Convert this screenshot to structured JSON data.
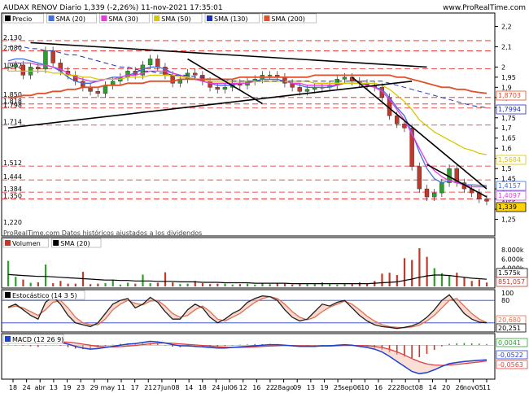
{
  "header": {
    "title": "AUDAX RENOV Diario 1,339 (-2,26%) 11-nov-2021 17:35:01",
    "site": "www.ProRealTime.com",
    "watermark": "ProRealTime.com  Datos históricos ajustados a los dividendos"
  },
  "colors": {
    "sma20": "#3f6fe0",
    "sma30": "#e83ce0",
    "sma50": "#d8c700",
    "sma130": "#2030b0",
    "sma200": "#e0502a",
    "up": "#2ca02c",
    "down": "#c0392b",
    "hline": "#e02020",
    "stoch_k": "#202020",
    "stoch_d": "#e07050",
    "macd": "#2040d0",
    "signal": "#e04040"
  },
  "chart_data": [
    {
      "type": "line",
      "panel": "price",
      "legend": [
        "Precio",
        "SMA (20)",
        "SMA (30)",
        "SMA (50)",
        "SMA (130)",
        "SMA (200)"
      ],
      "ylim": [
        1.2,
        2.25
      ],
      "right_ticks": [
        "2,2",
        "2,1",
        "2",
        "1,95",
        "1,9",
        "1,85",
        "1,8",
        "1,75",
        "1,7",
        "1,65",
        "1,6",
        "1,55",
        "1,5",
        "1,45",
        "1,4",
        "1,35",
        "1,3",
        "1,25"
      ],
      "left_labels": [
        "2,130",
        "2,080",
        "1,992",
        "1,850",
        "1,818",
        "1,798",
        "1,714",
        "1,512",
        "1,444",
        "1,384",
        "1,350",
        "1,220"
      ],
      "hlines": [
        2.13,
        2.08,
        1.992,
        1.85,
        1.818,
        1.798,
        1.714,
        1.512,
        1.444,
        1.384,
        1.35
      ],
      "last_values": [
        {
          "label": "1,8703",
          "series": "SMA (200)"
        },
        {
          "label": "1,7994",
          "series": "SMA (130)"
        },
        {
          "label": "1,5684",
          "series": "SMA (50)"
        },
        {
          "label": "1,4157",
          "series": "SMA (20)"
        },
        {
          "label": "1,4097",
          "series": "SMA (30)"
        },
        {
          "label": "1,339",
          "series": "Precio"
        }
      ],
      "series": [
        {
          "name": "Precio",
          "values": [
            2.0,
            2.01,
            1.96,
            2.0,
            1.99,
            2.08,
            2.02,
            1.98,
            1.96,
            1.93,
            1.9,
            1.88,
            1.87,
            1.91,
            1.93,
            1.95,
            1.98,
            1.96,
            2.01,
            2.04,
            2.0,
            1.96,
            1.92,
            1.94,
            1.97,
            1.96,
            1.93,
            1.9,
            1.89,
            1.9,
            1.92,
            1.91,
            1.93,
            1.94,
            1.96,
            1.96,
            1.95,
            1.92,
            1.9,
            1.88,
            1.89,
            1.9,
            1.9,
            1.91,
            1.94,
            1.95,
            1.93,
            1.92,
            1.91,
            1.9,
            1.85,
            1.76,
            1.72,
            1.7,
            1.51,
            1.4,
            1.36,
            1.38,
            1.43,
            1.5,
            1.43,
            1.4,
            1.38,
            1.35,
            1.339
          ]
        },
        {
          "name": "SMA (20)",
          "values": [
            2.03,
            2.04,
            2.04,
            2.03,
            2.02,
            2.01,
            2.0,
            1.98,
            1.95,
            1.93,
            1.92,
            1.92,
            1.93,
            1.94,
            1.95,
            1.95,
            1.96,
            1.97,
            1.99,
            2.0,
            2.0,
            1.99,
            1.97,
            1.96,
            1.95,
            1.94,
            1.93,
            1.92,
            1.91,
            1.91,
            1.91,
            1.92,
            1.92,
            1.93,
            1.94,
            1.94,
            1.94,
            1.93,
            1.92,
            1.91,
            1.9,
            1.9,
            1.9,
            1.9,
            1.91,
            1.92,
            1.92,
            1.92,
            1.91,
            1.9,
            1.89,
            1.85,
            1.8,
            1.76,
            1.68,
            1.58,
            1.5,
            1.45,
            1.43,
            1.44,
            1.43,
            1.42,
            1.42,
            1.418,
            1.4157
          ]
        },
        {
          "name": "SMA (30)",
          "values": [
            2.02,
            2.02,
            2.02,
            2.02,
            2.01,
            2.01,
            2.0,
            1.99,
            1.97,
            1.95,
            1.94,
            1.93,
            1.93,
            1.94,
            1.94,
            1.95,
            1.96,
            1.96,
            1.97,
            1.98,
            1.98,
            1.98,
            1.97,
            1.96,
            1.95,
            1.94,
            1.93,
            1.92,
            1.92,
            1.92,
            1.92,
            1.92,
            1.92,
            1.93,
            1.93,
            1.93,
            1.93,
            1.93,
            1.92,
            1.92,
            1.91,
            1.91,
            1.91,
            1.91,
            1.91,
            1.92,
            1.92,
            1.92,
            1.91,
            1.9,
            1.88,
            1.84,
            1.79,
            1.74,
            1.67,
            1.6,
            1.53,
            1.49,
            1.46,
            1.44,
            1.43,
            1.42,
            1.41,
            1.41,
            1.4097
          ]
        },
        {
          "name": "SMA (50)",
          "values": [
            1.98,
            1.98,
            1.98,
            1.98,
            1.98,
            1.98,
            1.97,
            1.97,
            1.96,
            1.96,
            1.95,
            1.95,
            1.94,
            1.94,
            1.94,
            1.94,
            1.95,
            1.95,
            1.95,
            1.96,
            1.96,
            1.96,
            1.96,
            1.95,
            1.95,
            1.94,
            1.94,
            1.93,
            1.93,
            1.93,
            1.93,
            1.93,
            1.93,
            1.93,
            1.93,
            1.93,
            1.93,
            1.93,
            1.93,
            1.93,
            1.93,
            1.92,
            1.92,
            1.92,
            1.92,
            1.92,
            1.92,
            1.92,
            1.92,
            1.92,
            1.91,
            1.89,
            1.86,
            1.83,
            1.79,
            1.74,
            1.71,
            1.68,
            1.66,
            1.64,
            1.62,
            1.6,
            1.59,
            1.575,
            1.5684
          ]
        },
        {
          "name": "SMA (130)",
          "values": [
            2.1,
            2.1,
            2.1,
            2.09,
            2.09,
            2.08,
            2.08,
            2.07,
            2.06,
            2.06,
            2.05,
            2.04,
            2.03,
            2.02,
            2.01,
            2.0,
            2.0,
            1.99,
            1.98,
            1.98,
            1.97,
            1.97,
            1.96,
            1.96,
            1.96,
            1.95,
            1.95,
            1.94,
            1.94,
            1.94,
            1.93,
            1.93,
            1.93,
            1.93,
            1.93,
            1.93,
            1.93,
            1.93,
            1.93,
            1.93,
            1.93,
            1.93,
            1.93,
            1.93,
            1.93,
            1.93,
            1.93,
            1.93,
            1.93,
            1.93,
            1.93,
            1.92,
            1.91,
            1.9,
            1.89,
            1.88,
            1.87,
            1.86,
            1.85,
            1.84,
            1.83,
            1.82,
            1.81,
            1.805,
            1.7994
          ]
        },
        {
          "name": "SMA (200)",
          "values": [
            1.85,
            1.85,
            1.86,
            1.86,
            1.87,
            1.87,
            1.88,
            1.88,
            1.89,
            1.89,
            1.9,
            1.9,
            1.9,
            1.91,
            1.91,
            1.91,
            1.92,
            1.92,
            1.92,
            1.93,
            1.93,
            1.93,
            1.93,
            1.94,
            1.94,
            1.94,
            1.94,
            1.94,
            1.94,
            1.94,
            1.94,
            1.95,
            1.95,
            1.95,
            1.95,
            1.95,
            1.95,
            1.95,
            1.95,
            1.95,
            1.95,
            1.96,
            1.96,
            1.96,
            1.96,
            1.96,
            1.96,
            1.96,
            1.96,
            1.96,
            1.96,
            1.96,
            1.95,
            1.95,
            1.94,
            1.93,
            1.92,
            1.91,
            1.9,
            1.9,
            1.89,
            1.89,
            1.88,
            1.875,
            1.8703
          ]
        }
      ]
    },
    {
      "type": "bar",
      "panel": "volume",
      "legend": [
        "Volumen",
        "SMA (20)"
      ],
      "right_ticks": [
        "8.000k",
        "6.000k",
        "4.000k",
        "2.000k"
      ],
      "last_values": [
        {
          "label": "1.575k",
          "series": "SMA (20)"
        },
        {
          "label": "851,057",
          "series": "Volumen"
        }
      ],
      "series": [
        {
          "name": "Volumen",
          "values": [
            5600,
            2100,
            1500,
            800,
            900,
            4800,
            700,
            1200,
            600,
            600,
            3200,
            500,
            600,
            700,
            1500,
            400,
            800,
            600,
            2600,
            700,
            800,
            3100,
            900,
            500,
            600,
            1200,
            700,
            500,
            600,
            600,
            400,
            500,
            600,
            400,
            700,
            500,
            800,
            600,
            400,
            700,
            500,
            600,
            900,
            500,
            400,
            600,
            700,
            900,
            600,
            1200,
            2800,
            3000,
            2500,
            6200,
            5800,
            8400,
            6500,
            4000,
            2900,
            2500,
            3000,
            2000,
            1200,
            1500,
            851
          ]
        },
        {
          "name": "SMA (20)",
          "values": [
            2600,
            2500,
            2400,
            2300,
            2200,
            2200,
            2100,
            2000,
            1900,
            1800,
            1700,
            1600,
            1500,
            1400,
            1400,
            1300,
            1300,
            1200,
            1200,
            1200,
            1100,
            1100,
            1100,
            1000,
            1000,
            1000,
            900,
            900,
            900,
            800,
            800,
            800,
            800,
            700,
            700,
            700,
            700,
            700,
            600,
            600,
            600,
            600,
            600,
            600,
            600,
            600,
            600,
            600,
            600,
            700,
            800,
            900,
            1000,
            1300,
            1600,
            2000,
            2300,
            2500,
            2500,
            2400,
            2200,
            2000,
            1800,
            1700,
            1575
          ]
        }
      ]
    },
    {
      "type": "line",
      "panel": "stochastic",
      "legend": [
        "Estocástico (14 3 5)"
      ],
      "ylim": [
        0,
        100
      ],
      "right_ticks": [
        "100",
        "80",
        "20"
      ],
      "last_values": [
        {
          "label": "20,680",
          "series": "%D"
        },
        {
          "label": "20,251",
          "series": "%K"
        }
      ],
      "series": [
        {
          "name": "%K",
          "values": [
            62,
            70,
            55,
            40,
            30,
            75,
            90,
            70,
            40,
            20,
            15,
            10,
            20,
            45,
            70,
            80,
            85,
            60,
            70,
            88,
            75,
            50,
            30,
            30,
            55,
            70,
            60,
            35,
            20,
            30,
            45,
            55,
            75,
            85,
            92,
            90,
            80,
            55,
            35,
            25,
            30,
            50,
            70,
            65,
            75,
            80,
            60,
            40,
            25,
            15,
            10,
            8,
            5,
            8,
            12,
            20,
            35,
            55,
            80,
            95,
            70,
            45,
            30,
            22,
            20.251
          ]
        },
        {
          "name": "%D",
          "values": [
            60,
            65,
            60,
            50,
            40,
            55,
            75,
            80,
            60,
            35,
            20,
            15,
            15,
            30,
            55,
            70,
            80,
            72,
            68,
            78,
            80,
            65,
            45,
            35,
            40,
            55,
            65,
            50,
            30,
            25,
            35,
            45,
            60,
            75,
            85,
            90,
            85,
            70,
            50,
            35,
            28,
            35,
            50,
            62,
            70,
            78,
            70,
            55,
            38,
            25,
            15,
            10,
            8,
            7,
            9,
            14,
            25,
            40,
            60,
            80,
            85,
            65,
            45,
            30,
            20.68
          ]
        }
      ]
    },
    {
      "type": "line",
      "panel": "macd",
      "legend": [
        "MACD (12 26 9)"
      ],
      "right_ticks": [
        "0,0041",
        "-0,0522",
        "-0,0563"
      ],
      "last_values": [
        {
          "label": "0,0041",
          "series": "Histograma"
        },
        {
          "label": "-0,0522",
          "series": "MACD"
        },
        {
          "label": "-0,0563",
          "series": "Señal"
        }
      ],
      "series": [
        {
          "name": "MACD",
          "values": [
            0.02,
            0.018,
            0.015,
            0.012,
            0.008,
            0.012,
            0.014,
            0.01,
            0.004,
            -0.004,
            -0.01,
            -0.014,
            -0.012,
            -0.008,
            -0.004,
            0.0,
            0.004,
            0.006,
            0.01,
            0.014,
            0.012,
            0.008,
            0.002,
            -0.002,
            -0.002,
            -0.004,
            -0.006,
            -0.008,
            -0.01,
            -0.01,
            -0.008,
            -0.006,
            -0.004,
            -0.002,
            0.0,
            0.002,
            0.002,
            0.0,
            -0.002,
            -0.004,
            -0.004,
            -0.004,
            -0.002,
            -0.002,
            0.0,
            0.002,
            0.0,
            -0.004,
            -0.008,
            -0.014,
            -0.024,
            -0.04,
            -0.058,
            -0.076,
            -0.094,
            -0.102,
            -0.098,
            -0.088,
            -0.076,
            -0.066,
            -0.062,
            -0.058,
            -0.056,
            -0.054,
            -0.0522
          ]
        },
        {
          "name": "Señal",
          "values": [
            0.018,
            0.018,
            0.017,
            0.016,
            0.014,
            0.013,
            0.013,
            0.012,
            0.011,
            0.008,
            0.004,
            0.0,
            -0.004,
            -0.006,
            -0.006,
            -0.005,
            -0.003,
            -0.001,
            0.002,
            0.005,
            0.007,
            0.008,
            0.007,
            0.005,
            0.003,
            0.001,
            -0.001,
            -0.003,
            -0.005,
            -0.007,
            -0.008,
            -0.008,
            -0.007,
            -0.006,
            -0.004,
            -0.003,
            -0.002,
            -0.001,
            -0.001,
            -0.002,
            -0.002,
            -0.003,
            -0.003,
            -0.003,
            -0.002,
            -0.001,
            -0.001,
            -0.001,
            -0.002,
            -0.004,
            -0.008,
            -0.015,
            -0.024,
            -0.035,
            -0.048,
            -0.059,
            -0.067,
            -0.071,
            -0.072,
            -0.071,
            -0.069,
            -0.066,
            -0.063,
            -0.06,
            -0.0563
          ]
        }
      ]
    }
  ],
  "x_axis": {
    "labels": [
      "18",
      "24",
      "abr",
      "13",
      "19",
      "23",
      "29",
      "may",
      "11",
      "17",
      "21",
      "27jun",
      "08",
      "14",
      "18",
      "24",
      "jul06",
      "12",
      "16",
      "22",
      "28ago",
      "09",
      "13",
      "19",
      "25",
      "sep06",
      "10",
      "16",
      "22",
      "28oct",
      "08",
      "14",
      "20",
      "26",
      "nov05",
      "11"
    ]
  }
}
